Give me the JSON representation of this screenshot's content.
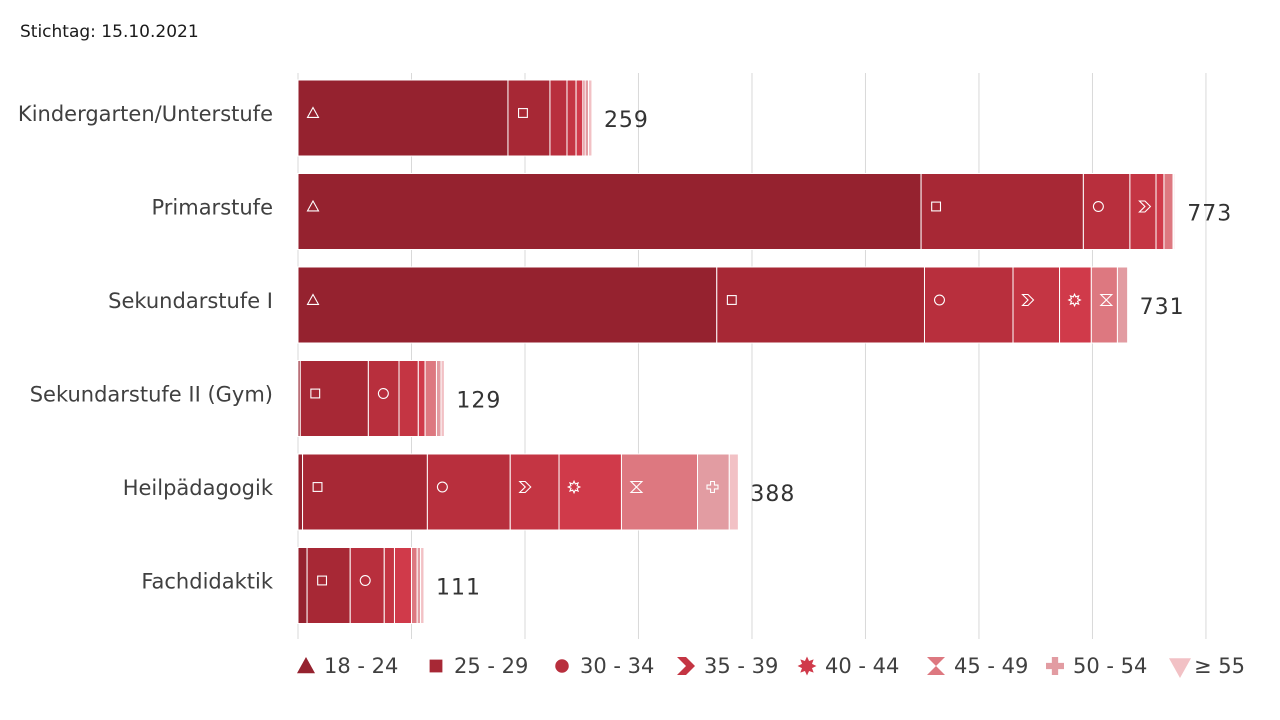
{
  "stichtag": "Stichtag: 15.10.2021",
  "chart_data": {
    "type": "bar",
    "orientation": "horizontal",
    "stacked": true,
    "categories": [
      "Kindergarten/Unterstufe",
      "Primarstufe",
      "Sekundarstufe I",
      "Sekundarstufe II (Gym)",
      "Heilpädagogik",
      "Fachdidaktik"
    ],
    "totals": [
      "259",
      "773",
      "731",
      "129",
      "388",
      "111"
    ],
    "xlim": [
      0,
      830
    ],
    "grid": true,
    "legend_position": "bottom",
    "series": [
      {
        "name": "18 - 24",
        "color": "#95222f",
        "marker": "triangle-up",
        "values": [
          185,
          549,
          369,
          2,
          4,
          8
        ]
      },
      {
        "name": "25 - 29",
        "color": "#a72835",
        "marker": "square",
        "values": [
          37,
          143,
          183,
          60,
          110,
          38
        ]
      },
      {
        "name": "30 - 34",
        "color": "#b82f3d",
        "marker": "circle",
        "values": [
          15,
          41,
          78,
          27,
          73,
          30
        ]
      },
      {
        "name": "35 - 39",
        "color": "#c43543",
        "marker": "chevron",
        "values": [
          8,
          23,
          41,
          17,
          43,
          9
        ]
      },
      {
        "name": "40 - 44",
        "color": "#d03a4a",
        "marker": "star",
        "values": [
          6,
          7,
          28,
          6,
          55,
          15
        ]
      },
      {
        "name": "45 - 49",
        "color": "#dd7880",
        "marker": "hourglass",
        "values": [
          2,
          8,
          23,
          10,
          67,
          5
        ]
      },
      {
        "name": "50 - 54",
        "color": "#e29ca2",
        "marker": "cross",
        "values": [
          3,
          1,
          9,
          4,
          28,
          3
        ]
      },
      {
        "name": "≥ 55",
        "color": "#f2c1c5",
        "marker": "triangle-down",
        "values": [
          3,
          1,
          0,
          3,
          8,
          3
        ]
      }
    ]
  }
}
